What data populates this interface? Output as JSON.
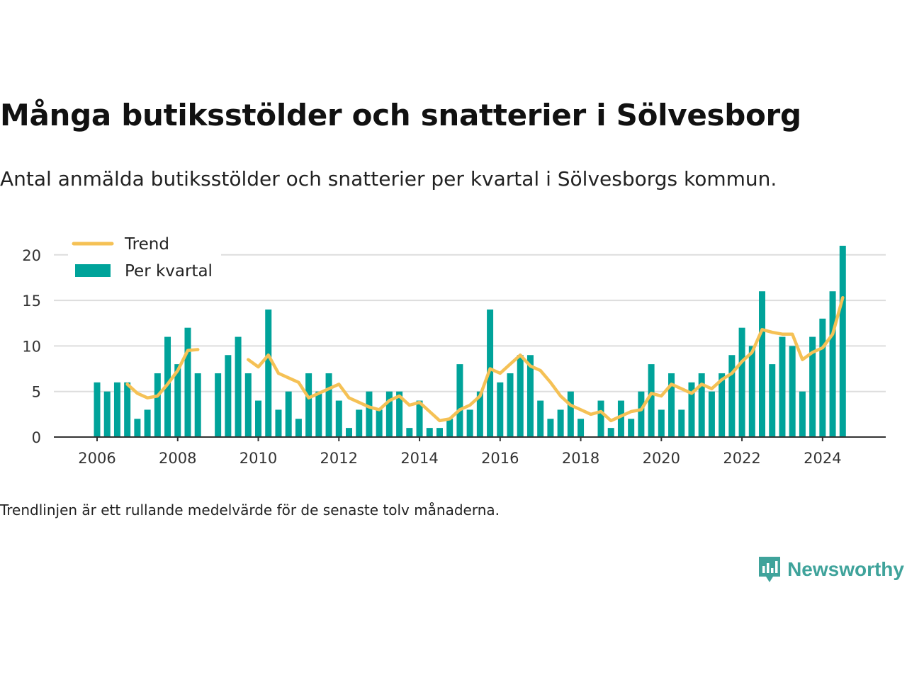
{
  "title": "Många butiksstölder och snatterier i Sölvesborg",
  "subtitle": "Antal anmälda butiksstölder och snatterier per kvartal i Sölvesborgs kommun.",
  "footnote": "Trendlinjen är ett rullande medelvärde för de senaste tolv månaderna.",
  "brand": {
    "name": "Newsworthy",
    "icon": "newsworthy-logo-icon"
  },
  "colors": {
    "bars": "#00a39a",
    "trend": "#f5c155",
    "grid": "#dddddd",
    "axis": "#333333"
  },
  "chart_data": {
    "type": "bar",
    "x_tick_labels": [
      "2006",
      "2008",
      "2010",
      "2012",
      "2014",
      "2016",
      "2018",
      "2020",
      "2022",
      "2024"
    ],
    "y_ticks": [
      0,
      5,
      10,
      15,
      20
    ],
    "ylim": [
      0,
      21.5
    ],
    "grid": true,
    "legend_position": "top-left",
    "series": [
      {
        "name": "Per kvartal",
        "type": "bar",
        "start": "2006Q1",
        "values": [
          6,
          5,
          6,
          6,
          2,
          3,
          7,
          11,
          8,
          12,
          7,
          null,
          7,
          9,
          11,
          7,
          4,
          14,
          3,
          5,
          2,
          7,
          5,
          7,
          4,
          1,
          3,
          5,
          3,
          5,
          5,
          1,
          4,
          1,
          1,
          2,
          8,
          3,
          5,
          14,
          6,
          7,
          9,
          9,
          4,
          2,
          3,
          5,
          2,
          null,
          4,
          1,
          4,
          2,
          5,
          8,
          3,
          7,
          3,
          6,
          7,
          5,
          7,
          9,
          12,
          10,
          16,
          8,
          11,
          10,
          5,
          11,
          13,
          16,
          21
        ]
      },
      {
        "name": "Trend",
        "type": "line",
        "start": "2006Q1",
        "values": [
          null,
          null,
          null,
          5.8,
          4.8,
          4.3,
          4.5,
          5.8,
          7.3,
          9.5,
          9.6,
          null,
          null,
          null,
          null,
          8.5,
          7.7,
          9.0,
          7.0,
          6.5,
          6.0,
          4.3,
          4.8,
          5.3,
          5.8,
          4.3,
          3.8,
          3.3,
          3.0,
          4.0,
          4.5,
          3.5,
          3.8,
          2.8,
          1.8,
          2.0,
          3.0,
          3.5,
          4.5,
          7.5,
          7.0,
          8.0,
          9.0,
          7.8,
          7.3,
          6.0,
          4.5,
          3.5,
          3.0,
          2.5,
          2.8,
          1.8,
          2.3,
          2.8,
          3.0,
          4.8,
          4.5,
          5.8,
          5.3,
          4.8,
          5.8,
          5.3,
          6.3,
          7.0,
          8.3,
          9.3,
          11.8,
          11.5,
          11.3,
          11.3,
          8.5,
          9.3,
          9.8,
          11.3,
          15.3
        ]
      }
    ]
  }
}
